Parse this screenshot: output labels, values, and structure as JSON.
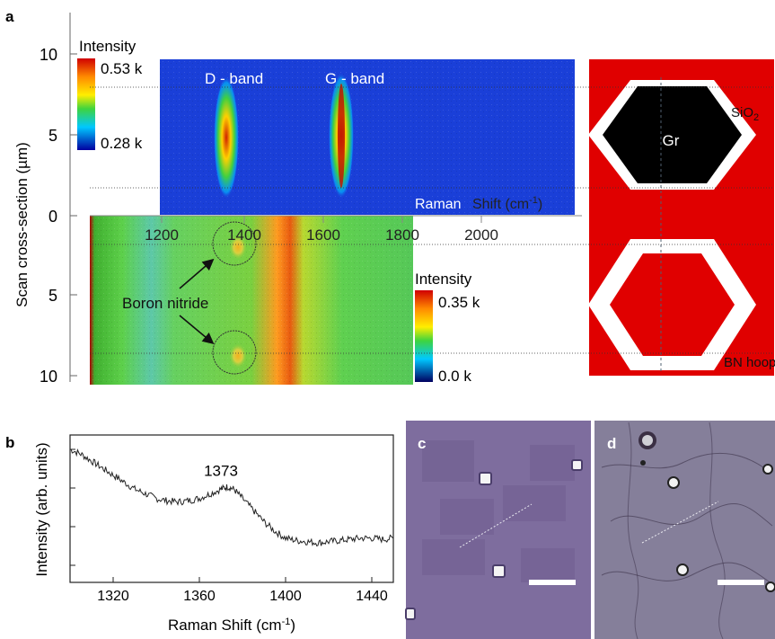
{
  "panels": {
    "a": "a",
    "b": "b",
    "c": "c",
    "d": "d"
  },
  "panel_a": {
    "y_axis_label": "Scan cross-section (µm)",
    "y_ticks_upper": [
      "10",
      "5",
      "0"
    ],
    "y_ticks_lower": [
      "5",
      "10"
    ],
    "top_map": {
      "colorbar_title": "Intensity",
      "colorbar_max": "0.53 k",
      "colorbar_min": "0.28 k",
      "band_labels": [
        "D - band",
        "G - band"
      ],
      "bg_color": "#1a3fd8"
    },
    "bottom_map": {
      "colorbar_title": "Intensity",
      "colorbar_max": "0.35 k",
      "colorbar_min": "0.0 k",
      "annotation": "Boron nitride"
    },
    "x_axis": {
      "label_part1": "Raman",
      "label_part2": "Shift (cm",
      "label_sup": "-1",
      "label_end": ")",
      "ticks": [
        "1200",
        "1400",
        "1600",
        "1800",
        "2000"
      ]
    },
    "schematic": {
      "bg_color": "#e00000",
      "gr_label": "Gr",
      "sio2_label": "SiO",
      "sio2_sub": "2",
      "bn_label": "BN hoop"
    }
  },
  "chart_data": {
    "type": "line",
    "title": "",
    "xlabel": "Raman Shift (cm-1)",
    "ylabel": "Intensity (arb. units)",
    "xlim": [
      1300,
      1450
    ],
    "x_ticks": [
      1320,
      1360,
      1400,
      1440
    ],
    "annotation": "1373",
    "series": [
      {
        "x": [
          1300,
          1305,
          1310,
          1315,
          1320,
          1325,
          1330,
          1335,
          1340,
          1345,
          1350,
          1355,
          1360,
          1365,
          1370,
          1373,
          1376,
          1380,
          1385,
          1390,
          1395,
          1400,
          1405,
          1410,
          1415,
          1420,
          1425,
          1430,
          1435,
          1440,
          1445,
          1450
        ],
        "y": [
          1.0,
          0.96,
          0.9,
          0.84,
          0.78,
          0.72,
          0.66,
          0.62,
          0.58,
          0.56,
          0.55,
          0.56,
          0.58,
          0.62,
          0.66,
          0.68,
          0.66,
          0.58,
          0.48,
          0.38,
          0.3,
          0.24,
          0.22,
          0.21,
          0.2,
          0.21,
          0.22,
          0.23,
          0.24,
          0.24,
          0.23,
          0.24
        ]
      }
    ]
  },
  "panel_c": {
    "bg_color": "#7e6d9e"
  },
  "panel_d": {
    "bg_color": "#857f9a"
  }
}
